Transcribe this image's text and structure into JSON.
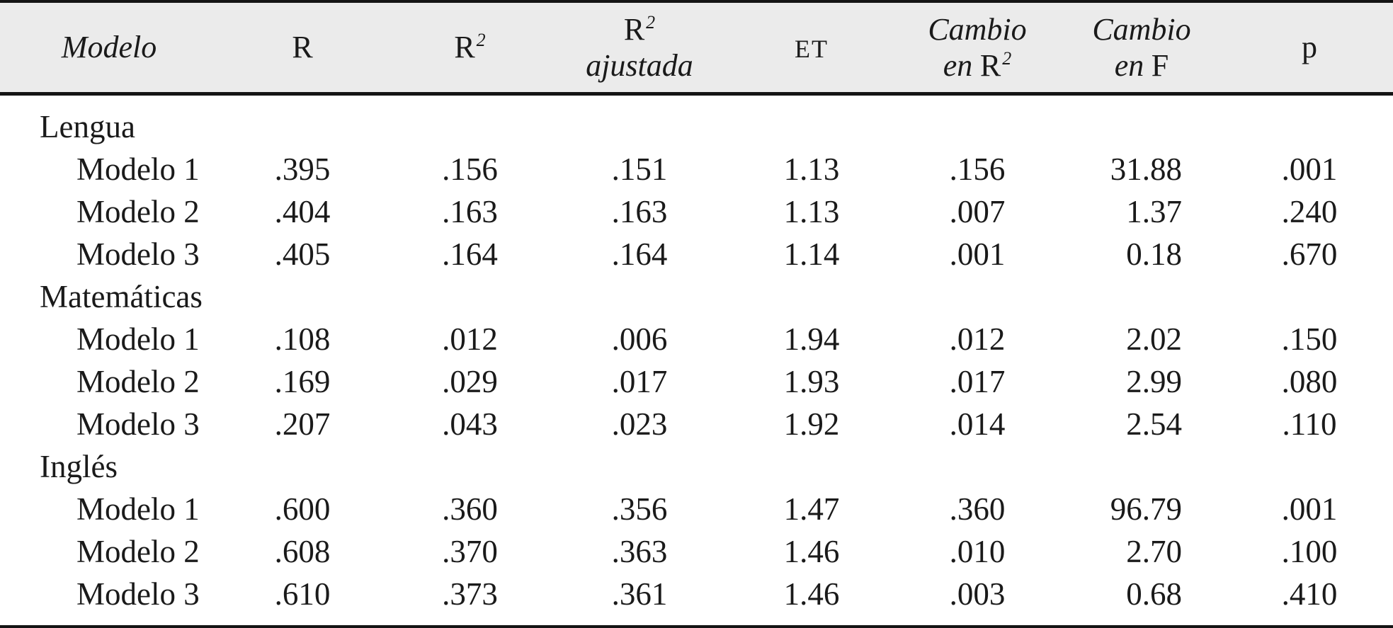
{
  "colors": {
    "header_background": "#ebebeb",
    "border": "#141414",
    "text": "#1a1a1a",
    "body_background": "#ffffff"
  },
  "headers": {
    "modelo": "Modelo",
    "r": "R",
    "r2": {
      "base": "R",
      "sup": "2"
    },
    "r2_ajustada": {
      "base": "R",
      "sup": "2",
      "line2": "ajustada"
    },
    "et": "ET",
    "cambio_r2": {
      "line1": "Cambio",
      "line2_prefix": "en",
      "base": "R",
      "sup": "2"
    },
    "cambio_f": {
      "line1": "Cambio",
      "line2_prefix": "en",
      "base": "F"
    },
    "p": "p"
  },
  "rows": [
    {
      "kind": "group",
      "label": "Lengua"
    },
    {
      "kind": "model",
      "label": "Modelo 1",
      "r": ".395",
      "r2": ".156",
      "r2_ajustada": ".151",
      "et": "1.13",
      "cambio_r2": ".156",
      "cambio_f": "31.88",
      "p": ".001"
    },
    {
      "kind": "model",
      "label": "Modelo 2",
      "r": ".404",
      "r2": ".163",
      "r2_ajustada": ".163",
      "et": "1.13",
      "cambio_r2": ".007",
      "cambio_f": "1.37",
      "p": ".240"
    },
    {
      "kind": "model",
      "label": "Modelo 3",
      "r": ".405",
      "r2": ".164",
      "r2_ajustada": ".164",
      "et": "1.14",
      "cambio_r2": ".001",
      "cambio_f": "0.18",
      "p": ".670"
    },
    {
      "kind": "group",
      "label": "Matemáticas"
    },
    {
      "kind": "model",
      "label": "Modelo 1",
      "r": ".108",
      "r2": ".012",
      "r2_ajustada": ".006",
      "et": "1.94",
      "cambio_r2": ".012",
      "cambio_f": "2.02",
      "p": ".150"
    },
    {
      "kind": "model",
      "label": "Modelo 2",
      "r": ".169",
      "r2": ".029",
      "r2_ajustada": ".017",
      "et": "1.93",
      "cambio_r2": ".017",
      "cambio_f": "2.99",
      "p": ".080"
    },
    {
      "kind": "model",
      "label": "Modelo 3",
      "r": ".207",
      "r2": ".043",
      "r2_ajustada": ".023",
      "et": "1.92",
      "cambio_r2": ".014",
      "cambio_f": "2.54",
      "p": ".110"
    },
    {
      "kind": "group",
      "label": "Inglés"
    },
    {
      "kind": "model",
      "label": "Modelo 1",
      "r": ".600",
      "r2": ".360",
      "r2_ajustada": ".356",
      "et": "1.47",
      "cambio_r2": ".360",
      "cambio_f": "96.79",
      "p": ".001"
    },
    {
      "kind": "model",
      "label": "Modelo 2",
      "r": ".608",
      "r2": ".370",
      "r2_ajustada": ".363",
      "et": "1.46",
      "cambio_r2": ".010",
      "cambio_f": "2.70",
      "p": ".100"
    },
    {
      "kind": "model",
      "label": "Modelo 3",
      "r": ".610",
      "r2": ".373",
      "r2_ajustada": ".361",
      "et": "1.46",
      "cambio_r2": ".003",
      "cambio_f": "0.68",
      "p": ".410"
    }
  ]
}
